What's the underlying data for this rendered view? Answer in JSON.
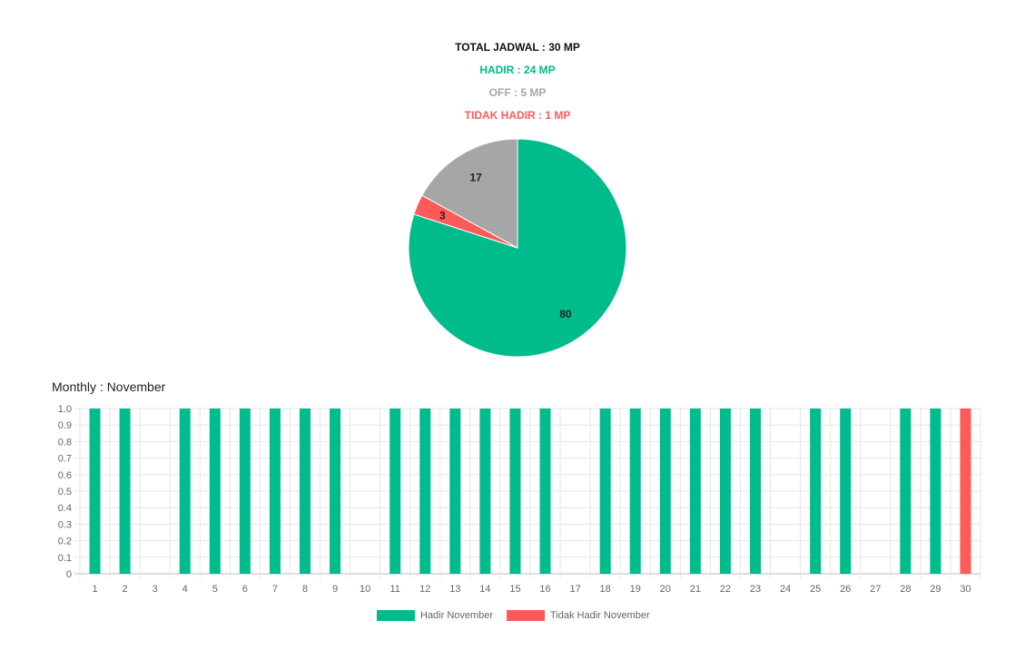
{
  "summary": {
    "total": "TOTAL JADWAL : 30 MP",
    "hadir": "HADIR : 24 MP",
    "off": "OFF : 5 MP",
    "tidak_hadir": "TIDAK HADIR : 1 MP"
  },
  "colors": {
    "hadir": "#00bc8c",
    "off": "#a6a6a6",
    "tidak_hadir": "#ff5a5a",
    "grid": "#e6e6e6",
    "text": "#666666"
  },
  "monthly_title": "Monthly : November",
  "chart_data": [
    {
      "type": "pie",
      "slices": [
        {
          "label": "80",
          "value": 80,
          "color": "#00bc8c"
        },
        {
          "label": "3",
          "value": 3,
          "color": "#ff5a5a"
        },
        {
          "label": "17",
          "value": 17,
          "color": "#a6a6a6"
        }
      ]
    },
    {
      "type": "bar",
      "title": "Monthly : November",
      "categories": [
        "1",
        "2",
        "3",
        "4",
        "5",
        "6",
        "7",
        "8",
        "9",
        "10",
        "11",
        "12",
        "13",
        "14",
        "15",
        "16",
        "17",
        "18",
        "19",
        "20",
        "21",
        "22",
        "23",
        "24",
        "25",
        "26",
        "27",
        "28",
        "29",
        "30"
      ],
      "series": [
        {
          "name": "Hadir November",
          "color": "#00bc8c",
          "values": [
            1,
            1,
            0,
            1,
            1,
            1,
            1,
            1,
            1,
            0,
            1,
            1,
            1,
            1,
            1,
            1,
            0,
            1,
            1,
            1,
            1,
            1,
            1,
            0,
            1,
            1,
            0,
            1,
            1,
            0
          ]
        },
        {
          "name": "Tidak Hadir November",
          "color": "#ff5a5a",
          "values": [
            0,
            0,
            0,
            0,
            0,
            0,
            0,
            0,
            0,
            0,
            0,
            0,
            0,
            0,
            0,
            0,
            0,
            0,
            0,
            0,
            0,
            0,
            0,
            0,
            0,
            0,
            0,
            0,
            0,
            1
          ]
        }
      ],
      "ylim": [
        0,
        1.0
      ],
      "yticks": [
        "0",
        "0.1",
        "0.2",
        "0.3",
        "0.4",
        "0.5",
        "0.6",
        "0.7",
        "0.8",
        "0.9",
        "1.0"
      ],
      "grid": true,
      "legend_position": "bottom"
    }
  ]
}
